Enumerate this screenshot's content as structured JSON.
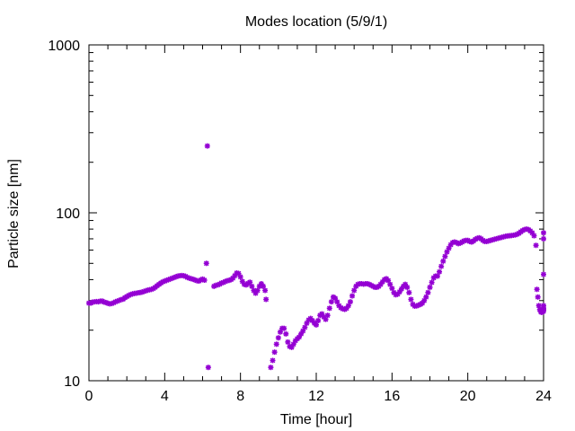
{
  "chart_data": {
    "type": "scatter",
    "title": "Modes location (5/9/1)",
    "xlabel": "Time [hour]",
    "ylabel": "Particle size [nm]",
    "xlim": [
      0,
      24
    ],
    "ylim": [
      10,
      1000
    ],
    "yscale": "log",
    "xticks": [
      0,
      4,
      8,
      12,
      16,
      20,
      24
    ],
    "xtick_labels": [
      "0",
      "4",
      "8",
      "12",
      "16",
      "20",
      "24"
    ],
    "yticks": [
      10,
      100,
      1000
    ],
    "ytick_labels": [
      "10",
      "100",
      "1000"
    ],
    "grid": false,
    "legend": "none",
    "colors": {
      "marker": "#9400d3",
      "axis": "#000000"
    },
    "series": [
      {
        "points": [
          [
            0.0,
            29
          ],
          [
            0.1,
            29
          ],
          [
            0.2,
            29.4
          ],
          [
            0.3,
            29.5
          ],
          [
            0.4,
            29.6
          ],
          [
            0.5,
            29.5
          ],
          [
            0.6,
            29.8
          ],
          [
            0.7,
            29.8
          ],
          [
            0.8,
            29.4
          ],
          [
            0.9,
            29.2
          ],
          [
            1.0,
            28.9
          ],
          [
            1.1,
            28.7
          ],
          [
            1.2,
            28.8
          ],
          [
            1.3,
            29.1
          ],
          [
            1.4,
            29.5
          ],
          [
            1.5,
            29.8
          ],
          [
            1.6,
            30.1
          ],
          [
            1.7,
            30.4
          ],
          [
            1.8,
            30.6
          ],
          [
            1.9,
            31.2
          ],
          [
            2.0,
            31.7
          ],
          [
            2.1,
            32.2
          ],
          [
            2.2,
            32.6
          ],
          [
            2.3,
            32.9
          ],
          [
            2.4,
            33.1
          ],
          [
            2.5,
            33.2
          ],
          [
            2.6,
            33.4
          ],
          [
            2.7,
            33.5
          ],
          [
            2.8,
            33.7
          ],
          [
            2.9,
            34.0
          ],
          [
            3.0,
            34.3
          ],
          [
            3.1,
            34.6
          ],
          [
            3.2,
            34.8
          ],
          [
            3.3,
            35.0
          ],
          [
            3.4,
            35.4
          ],
          [
            3.5,
            36.0
          ],
          [
            3.6,
            36.8
          ],
          [
            3.7,
            37.5
          ],
          [
            3.8,
            38.2
          ],
          [
            3.9,
            38.8
          ],
          [
            4.0,
            39.2
          ],
          [
            4.1,
            39.6
          ],
          [
            4.2,
            40.0
          ],
          [
            4.3,
            40.4
          ],
          [
            4.4,
            40.8
          ],
          [
            4.5,
            41.2
          ],
          [
            4.6,
            41.6
          ],
          [
            4.7,
            42.0
          ],
          [
            4.8,
            42.2
          ],
          [
            4.9,
            42.3
          ],
          [
            5.0,
            42.2
          ],
          [
            5.1,
            41.8
          ],
          [
            5.2,
            41.2
          ],
          [
            5.3,
            40.8
          ],
          [
            5.4,
            40.5
          ],
          [
            5.5,
            40.2
          ],
          [
            5.6,
            39.8
          ],
          [
            5.7,
            39.4
          ],
          [
            5.8,
            39.2
          ],
          [
            5.9,
            39.8
          ],
          [
            6.0,
            40.3
          ],
          [
            6.1,
            39.7
          ],
          [
            6.2,
            50
          ],
          [
            6.25,
            250
          ],
          [
            6.3,
            12
          ],
          [
            6.6,
            36.5
          ],
          [
            6.7,
            37
          ],
          [
            6.8,
            37.2
          ],
          [
            6.9,
            37.6
          ],
          [
            7.0,
            38.2
          ],
          [
            7.1,
            38.5
          ],
          [
            7.2,
            39.0
          ],
          [
            7.3,
            39.4
          ],
          [
            7.4,
            39.6
          ],
          [
            7.5,
            40.0
          ],
          [
            7.6,
            40.8
          ],
          [
            7.7,
            42.2
          ],
          [
            7.8,
            43.8
          ],
          [
            7.9,
            43.5
          ],
          [
            8.0,
            41.5
          ],
          [
            8.1,
            39.0
          ],
          [
            8.2,
            37.5
          ],
          [
            8.3,
            37.2
          ],
          [
            8.4,
            38.0
          ],
          [
            8.5,
            38.6
          ],
          [
            8.6,
            36.5
          ],
          [
            8.7,
            34.5
          ],
          [
            8.8,
            33.2
          ],
          [
            8.9,
            34.5
          ],
          [
            9.0,
            36.5
          ],
          [
            9.1,
            37.8
          ],
          [
            9.2,
            36.5
          ],
          [
            9.3,
            34.5
          ],
          [
            9.35,
            30.5
          ],
          [
            9.6,
            12
          ],
          [
            9.7,
            13.2
          ],
          [
            9.8,
            14.8
          ],
          [
            9.9,
            16.5
          ],
          [
            10.0,
            18.0
          ],
          [
            10.1,
            19.5
          ],
          [
            10.2,
            20.5
          ],
          [
            10.3,
            20.5
          ],
          [
            10.4,
            19.0
          ],
          [
            10.5,
            17.0
          ],
          [
            10.6,
            16.0
          ],
          [
            10.7,
            15.8
          ],
          [
            10.8,
            16.5
          ],
          [
            10.9,
            17.3
          ],
          [
            11.0,
            17.8
          ],
          [
            11.1,
            18.2
          ],
          [
            11.2,
            19.0
          ],
          [
            11.3,
            19.8
          ],
          [
            11.4,
            20.8
          ],
          [
            11.5,
            22.0
          ],
          [
            11.6,
            23.0
          ],
          [
            11.7,
            23.5
          ],
          [
            11.8,
            22.8
          ],
          [
            11.9,
            22.0
          ],
          [
            12.0,
            21.5
          ],
          [
            12.1,
            22.8
          ],
          [
            12.2,
            24.5
          ],
          [
            12.3,
            25.0
          ],
          [
            12.4,
            24.0
          ],
          [
            12.5,
            23.2
          ],
          [
            12.6,
            24.5
          ],
          [
            12.7,
            27.0
          ],
          [
            12.8,
            29.5
          ],
          [
            12.9,
            31.5
          ],
          [
            13.0,
            31.0
          ],
          [
            13.1,
            29.5
          ],
          [
            13.2,
            28.0
          ],
          [
            13.3,
            27.2
          ],
          [
            13.4,
            26.8
          ],
          [
            13.5,
            26.6
          ],
          [
            13.6,
            27.0
          ],
          [
            13.7,
            28.0
          ],
          [
            13.8,
            29.5
          ],
          [
            13.9,
            32.0
          ],
          [
            14.0,
            34.5
          ],
          [
            14.1,
            36.5
          ],
          [
            14.2,
            37.5
          ],
          [
            14.3,
            37.8
          ],
          [
            14.4,
            37.8
          ],
          [
            14.5,
            37.6
          ],
          [
            14.6,
            37.8
          ],
          [
            14.7,
            37.8
          ],
          [
            14.8,
            37.5
          ],
          [
            14.9,
            37.0
          ],
          [
            15.0,
            36.5
          ],
          [
            15.1,
            36.0
          ],
          [
            15.2,
            36.0
          ],
          [
            15.3,
            36.5
          ],
          [
            15.4,
            37.5
          ],
          [
            15.5,
            38.8
          ],
          [
            15.6,
            40.0
          ],
          [
            15.7,
            40.5
          ],
          [
            15.8,
            39.5
          ],
          [
            15.9,
            37.5
          ],
          [
            16.0,
            35.5
          ],
          [
            16.1,
            33.5
          ],
          [
            16.2,
            32.5
          ],
          [
            16.3,
            32.8
          ],
          [
            16.4,
            33.8
          ],
          [
            16.5,
            35.2
          ],
          [
            16.6,
            36.5
          ],
          [
            16.7,
            37.5
          ],
          [
            16.8,
            36.0
          ],
          [
            16.9,
            33.5
          ],
          [
            17.0,
            30.5
          ],
          [
            17.1,
            28.5
          ],
          [
            17.2,
            27.8
          ],
          [
            17.3,
            27.9
          ],
          [
            17.4,
            28.2
          ],
          [
            17.5,
            28.5
          ],
          [
            17.6,
            29.0
          ],
          [
            17.7,
            30.0
          ],
          [
            17.8,
            31.5
          ],
          [
            17.9,
            33.5
          ],
          [
            18.0,
            36.0
          ],
          [
            18.1,
            38.5
          ],
          [
            18.2,
            41.0
          ],
          [
            18.3,
            42.0
          ],
          [
            18.4,
            42.0
          ],
          [
            18.5,
            44.5
          ],
          [
            18.6,
            48.0
          ],
          [
            18.7,
            51.5
          ],
          [
            18.8,
            55.0
          ],
          [
            18.9,
            58.5
          ],
          [
            19.0,
            61.5
          ],
          [
            19.1,
            64.5
          ],
          [
            19.2,
            66.5
          ],
          [
            19.3,
            67.0
          ],
          [
            19.4,
            66.5
          ],
          [
            19.5,
            65.5
          ],
          [
            19.6,
            66.0
          ],
          [
            19.7,
            67.0
          ],
          [
            19.8,
            68.0
          ],
          [
            19.9,
            68.5
          ],
          [
            20.0,
            68.5
          ],
          [
            20.1,
            67.5
          ],
          [
            20.2,
            67.0
          ],
          [
            20.3,
            68.0
          ],
          [
            20.4,
            69.5
          ],
          [
            20.5,
            70.5
          ],
          [
            20.6,
            71.0
          ],
          [
            20.7,
            70.0
          ],
          [
            20.8,
            68.5
          ],
          [
            20.9,
            67.5
          ],
          [
            21.0,
            67.5
          ],
          [
            21.1,
            68.0
          ],
          [
            21.2,
            68.5
          ],
          [
            21.3,
            69.0
          ],
          [
            21.4,
            69.5
          ],
          [
            21.5,
            70.0
          ],
          [
            21.6,
            70.5
          ],
          [
            21.7,
            71.0
          ],
          [
            21.8,
            71.5
          ],
          [
            21.9,
            72.0
          ],
          [
            22.0,
            72.5
          ],
          [
            22.1,
            72.8
          ],
          [
            22.2,
            73.0
          ],
          [
            22.3,
            73.2
          ],
          [
            22.4,
            73.5
          ],
          [
            22.5,
            73.8
          ],
          [
            22.6,
            74.5
          ],
          [
            22.7,
            75.5
          ],
          [
            22.8,
            77.0
          ],
          [
            22.9,
            78.5
          ],
          [
            23.0,
            79.5
          ],
          [
            23.1,
            80.0
          ],
          [
            23.2,
            79.5
          ],
          [
            23.3,
            78.0
          ],
          [
            23.4,
            76.0
          ],
          [
            23.5,
            73.0
          ],
          [
            23.6,
            64.0
          ],
          [
            23.65,
            35.0
          ],
          [
            23.7,
            31.5
          ],
          [
            23.75,
            28.0
          ],
          [
            23.8,
            26.5
          ],
          [
            23.85,
            25.8
          ],
          [
            23.9,
            25.5
          ],
          [
            23.95,
            25.8
          ],
          [
            24.0,
            26.0
          ],
          [
            24.05,
            26.5
          ],
          [
            24.1,
            27.0
          ],
          [
            24.2,
            28.0
          ],
          [
            24.25,
            43.0
          ],
          [
            24.3,
            76.0
          ],
          [
            24.35,
            70.0
          ]
        ]
      }
    ]
  }
}
